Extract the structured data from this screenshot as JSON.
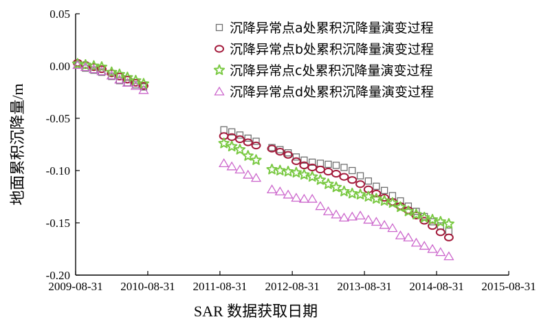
{
  "chart_data": {
    "type": "scatter",
    "title": "",
    "xlabel": "SAR 数据获取日期",
    "ylabel": "地面累积沉降量/m",
    "x_ticks": [
      "2009-08-31",
      "2010-08-31",
      "2011-08-31",
      "2012-08-31",
      "2013-08-31",
      "2014-08-31",
      "2015-08-31"
    ],
    "xlim": [
      "2009-08-31",
      "2015-08-31"
    ],
    "y_ticks": [
      "0.05",
      "0.00",
      "-0.05",
      "-0.10",
      "-0.15",
      "-0.20"
    ],
    "ylim": [
      -0.2,
      0.05
    ],
    "grid": false,
    "legend_position": "top-right",
    "series": [
      {
        "name": "沉降异常点a处累积沉降量演变过程",
        "marker": "square",
        "color": "#6e6e6e",
        "points": [
          [
            "2009-09-10",
            0.001
          ],
          [
            "2009-10-20",
            -0.002
          ],
          [
            "2009-12-01",
            -0.004
          ],
          [
            "2010-01-10",
            -0.006
          ],
          [
            "2010-03-01",
            -0.01
          ],
          [
            "2010-04-10",
            -0.014
          ],
          [
            "2010-05-20",
            -0.016
          ],
          [
            "2010-07-01",
            -0.018
          ],
          [
            "2010-08-10",
            -0.02
          ],
          [
            "2011-09-20",
            -0.061
          ],
          [
            "2011-10-30",
            -0.063
          ],
          [
            "2011-12-10",
            -0.066
          ],
          [
            "2012-01-20",
            -0.069
          ],
          [
            "2012-03-01",
            -0.072
          ],
          [
            "2012-05-20",
            -0.078
          ],
          [
            "2012-06-30",
            -0.08
          ],
          [
            "2012-08-10",
            -0.083
          ],
          [
            "2012-09-20",
            -0.087
          ],
          [
            "2012-10-30",
            -0.09
          ],
          [
            "2012-12-10",
            -0.092
          ],
          [
            "2013-01-20",
            -0.093
          ],
          [
            "2013-03-01",
            -0.094
          ],
          [
            "2013-04-10",
            -0.095
          ],
          [
            "2013-05-20",
            -0.097
          ],
          [
            "2013-06-30",
            -0.1
          ],
          [
            "2013-08-10",
            -0.105
          ],
          [
            "2013-09-20",
            -0.11
          ],
          [
            "2013-10-30",
            -0.115
          ],
          [
            "2013-12-10",
            -0.119
          ],
          [
            "2014-01-20",
            -0.124
          ],
          [
            "2014-03-01",
            -0.129
          ],
          [
            "2014-04-10",
            -0.134
          ],
          [
            "2014-05-20",
            -0.139
          ],
          [
            "2014-06-30",
            -0.144
          ],
          [
            "2014-08-10",
            -0.149
          ],
          [
            "2014-09-20",
            -0.153
          ],
          [
            "2014-11-01",
            -0.158
          ]
        ]
      },
      {
        "name": "沉降异常点b处累积沉降量演变过程",
        "marker": "circle",
        "color": "#a3193a",
        "points": [
          [
            "2009-09-10",
            0.003
          ],
          [
            "2009-10-20",
            0.001
          ],
          [
            "2009-12-01",
            -0.001
          ],
          [
            "2010-01-10",
            -0.003
          ],
          [
            "2010-03-01",
            -0.007
          ],
          [
            "2010-04-10",
            -0.01
          ],
          [
            "2010-05-20",
            -0.013
          ],
          [
            "2010-07-01",
            -0.016
          ],
          [
            "2010-08-10",
            -0.019
          ],
          [
            "2011-09-20",
            -0.067
          ],
          [
            "2011-10-30",
            -0.068
          ],
          [
            "2011-12-10",
            -0.07
          ],
          [
            "2012-01-20",
            -0.073
          ],
          [
            "2012-03-01",
            -0.076
          ],
          [
            "2012-05-20",
            -0.079
          ],
          [
            "2012-06-30",
            -0.082
          ],
          [
            "2012-08-10",
            -0.085
          ],
          [
            "2012-09-20",
            -0.091
          ],
          [
            "2012-10-30",
            -0.095
          ],
          [
            "2012-12-10",
            -0.097
          ],
          [
            "2013-01-20",
            -0.099
          ],
          [
            "2013-03-01",
            -0.101
          ],
          [
            "2013-04-10",
            -0.103
          ],
          [
            "2013-05-20",
            -0.106
          ],
          [
            "2013-06-30",
            -0.109
          ],
          [
            "2013-08-10",
            -0.113
          ],
          [
            "2013-09-20",
            -0.118
          ],
          [
            "2013-10-30",
            -0.122
          ],
          [
            "2013-12-10",
            -0.126
          ],
          [
            "2014-01-20",
            -0.13
          ],
          [
            "2014-03-01",
            -0.134
          ],
          [
            "2014-04-10",
            -0.138
          ],
          [
            "2014-05-20",
            -0.143
          ],
          [
            "2014-06-30",
            -0.148
          ],
          [
            "2014-08-10",
            -0.153
          ],
          [
            "2014-09-20",
            -0.159
          ],
          [
            "2014-11-01",
            -0.164
          ]
        ]
      },
      {
        "name": "沉降异常点c处累积沉降量演变过程",
        "marker": "star",
        "color": "#7ac943",
        "points": [
          [
            "2009-09-10",
            0.002
          ],
          [
            "2009-10-20",
            0.001
          ],
          [
            "2009-12-01",
            0.0
          ],
          [
            "2010-01-10",
            -0.001
          ],
          [
            "2010-03-01",
            -0.006
          ],
          [
            "2010-04-10",
            -0.008
          ],
          [
            "2010-05-20",
            -0.011
          ],
          [
            "2010-07-01",
            -0.014
          ],
          [
            "2010-08-10",
            -0.017
          ],
          [
            "2011-09-20",
            -0.074
          ],
          [
            "2011-10-30",
            -0.077
          ],
          [
            "2011-12-10",
            -0.08
          ],
          [
            "2012-01-20",
            -0.086
          ],
          [
            "2012-03-01",
            -0.09
          ],
          [
            "2012-05-20",
            -0.099
          ],
          [
            "2012-06-30",
            -0.1
          ],
          [
            "2012-08-10",
            -0.101
          ],
          [
            "2012-09-20",
            -0.102
          ],
          [
            "2012-10-30",
            -0.104
          ],
          [
            "2012-12-10",
            -0.106
          ],
          [
            "2013-01-20",
            -0.109
          ],
          [
            "2013-03-01",
            -0.113
          ],
          [
            "2013-04-10",
            -0.116
          ],
          [
            "2013-05-20",
            -0.12
          ],
          [
            "2013-06-30",
            -0.122
          ],
          [
            "2013-08-10",
            -0.123
          ],
          [
            "2013-09-20",
            -0.125
          ],
          [
            "2013-10-30",
            -0.127
          ],
          [
            "2013-12-10",
            -0.129
          ],
          [
            "2014-01-20",
            -0.131
          ],
          [
            "2014-03-01",
            -0.135
          ],
          [
            "2014-04-10",
            -0.139
          ],
          [
            "2014-05-20",
            -0.142
          ],
          [
            "2014-06-30",
            -0.145
          ],
          [
            "2014-08-10",
            -0.147
          ],
          [
            "2014-09-20",
            -0.149
          ],
          [
            "2014-11-01",
            -0.151
          ]
        ]
      },
      {
        "name": "沉降异常点d处累积沉降量演变过程",
        "marker": "triangle",
        "color": "#cc66cc",
        "points": [
          [
            "2009-09-10",
            0.001
          ],
          [
            "2009-10-20",
            -0.001
          ],
          [
            "2009-12-01",
            -0.003
          ],
          [
            "2010-01-10",
            -0.005
          ],
          [
            "2010-03-01",
            -0.009
          ],
          [
            "2010-04-10",
            -0.013
          ],
          [
            "2010-05-20",
            -0.016
          ],
          [
            "2010-07-01",
            -0.019
          ],
          [
            "2010-08-10",
            -0.023
          ],
          [
            "2011-09-20",
            -0.093
          ],
          [
            "2011-10-30",
            -0.096
          ],
          [
            "2011-12-10",
            -0.099
          ],
          [
            "2012-01-20",
            -0.104
          ],
          [
            "2012-03-01",
            -0.107
          ],
          [
            "2012-05-20",
            -0.118
          ],
          [
            "2012-06-30",
            -0.12
          ],
          [
            "2012-08-10",
            -0.123
          ],
          [
            "2012-09-20",
            -0.126
          ],
          [
            "2012-10-30",
            -0.127
          ],
          [
            "2012-12-10",
            -0.127
          ],
          [
            "2013-01-20",
            -0.134
          ],
          [
            "2013-03-01",
            -0.139
          ],
          [
            "2013-04-10",
            -0.142
          ],
          [
            "2013-05-20",
            -0.145
          ],
          [
            "2013-06-30",
            -0.144
          ],
          [
            "2013-08-10",
            -0.143
          ],
          [
            "2013-09-20",
            -0.147
          ],
          [
            "2013-10-30",
            -0.149
          ],
          [
            "2013-12-10",
            -0.152
          ],
          [
            "2014-01-20",
            -0.155
          ],
          [
            "2014-03-01",
            -0.162
          ],
          [
            "2014-04-10",
            -0.164
          ],
          [
            "2014-05-20",
            -0.169
          ],
          [
            "2014-06-30",
            -0.172
          ],
          [
            "2014-08-10",
            -0.175
          ],
          [
            "2014-09-20",
            -0.178
          ],
          [
            "2014-11-01",
            -0.182
          ]
        ]
      }
    ]
  }
}
